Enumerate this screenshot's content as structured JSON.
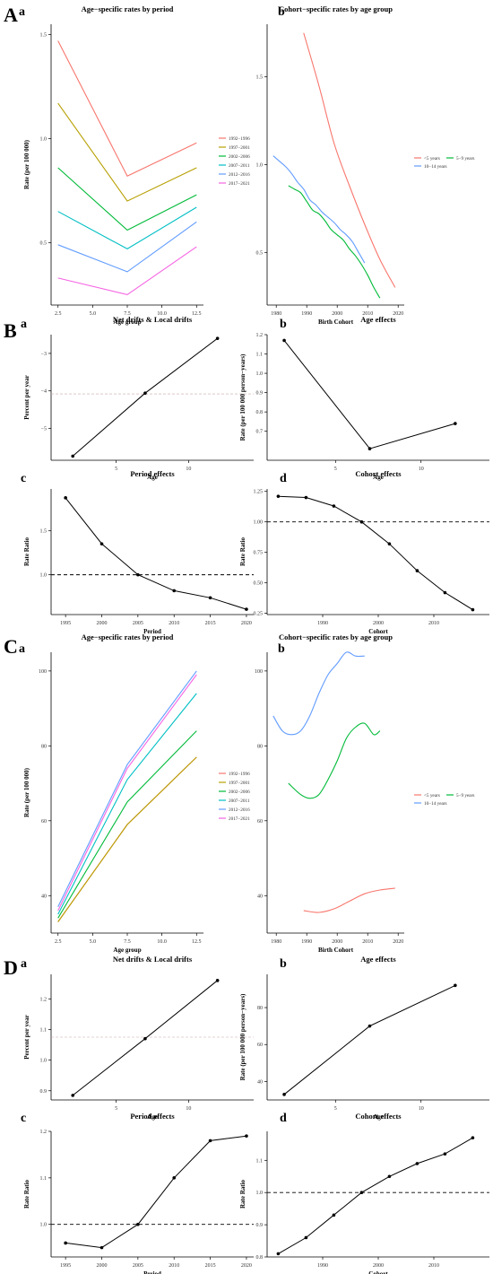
{
  "panels": [
    {
      "letter": "A",
      "sub": [
        "a",
        "b"
      ]
    },
    {
      "letter": "B",
      "sub": [
        "a",
        "b",
        "c",
        "d"
      ]
    },
    {
      "letter": "C",
      "sub": [
        "a",
        "b"
      ]
    },
    {
      "letter": "D",
      "sub": [
        "a",
        "b",
        "c",
        "d"
      ]
    }
  ],
  "chart_data": [
    {
      "type": "line",
      "panel": "A",
      "sub": "a",
      "title": "Age−specific rates by period",
      "xlabel": "Age group",
      "ylabel": "Rate (per 100 000)",
      "xlim": [
        2,
        13
      ],
      "ylim": [
        0.2,
        1.55
      ],
      "xticks": [
        2.5,
        5.0,
        7.5,
        10.0,
        12.5
      ],
      "xtick_labels": [
        "2.5",
        "5.0",
        "7.5",
        "10.0",
        "12.5"
      ],
      "yticks": [
        0.5,
        1.0,
        1.5
      ],
      "ytick_labels": [
        "0.5",
        "1.0",
        "1.5"
      ],
      "legend": "right",
      "x": [
        2.5,
        7.5,
        12.5
      ],
      "series": [
        {
          "name": "1992−1996",
          "color": "#f8766d",
          "values": [
            1.47,
            0.82,
            0.98
          ]
        },
        {
          "name": "1997−2001",
          "color": "#b79f00",
          "values": [
            1.17,
            0.7,
            0.86
          ]
        },
        {
          "name": "2002−2006",
          "color": "#00ba38",
          "values": [
            0.86,
            0.56,
            0.73
          ]
        },
        {
          "name": "2007−2011",
          "color": "#00bfc4",
          "values": [
            0.65,
            0.47,
            0.67
          ]
        },
        {
          "name": "2012−2016",
          "color": "#619cff",
          "values": [
            0.49,
            0.36,
            0.6
          ]
        },
        {
          "name": "2017−2021",
          "color": "#f564e3",
          "values": [
            0.33,
            0.25,
            0.48
          ]
        }
      ]
    },
    {
      "type": "line",
      "panel": "A",
      "sub": "b",
      "title": "Cohort−specific rates by age group",
      "xlabel": "Birth Cohort",
      "ylabel": "",
      "xlim": [
        1977,
        2022
      ],
      "ylim": [
        0.2,
        1.8
      ],
      "xticks": [
        1980,
        1990,
        2000,
        2010,
        2020
      ],
      "xtick_labels": [
        "1980",
        "1990",
        "2000",
        "2010",
        "2020"
      ],
      "yticks": [
        0.5,
        1.0,
        1.5
      ],
      "ytick_labels": [
        "0.5",
        "1.0",
        "1.5"
      ],
      "legend": "right",
      "series": [
        {
          "name": "<5 years",
          "color": "#f8766d",
          "x": [
            1989,
            1994,
            1999,
            2004,
            2009,
            2014,
            2019
          ],
          "values": [
            1.75,
            1.45,
            1.12,
            0.88,
            0.66,
            0.46,
            0.3
          ]
        },
        {
          "name": "5−9 years",
          "color": "#00ba38",
          "x": [
            1984,
            1986,
            1988,
            1990,
            1992,
            1994,
            1996,
            1998,
            2000,
            2002,
            2004,
            2006,
            2008,
            2010,
            2012,
            2014
          ],
          "values": [
            0.88,
            0.86,
            0.84,
            0.79,
            0.74,
            0.72,
            0.68,
            0.63,
            0.6,
            0.57,
            0.52,
            0.48,
            0.43,
            0.37,
            0.3,
            0.24
          ]
        },
        {
          "name": "10−14 years",
          "color": "#619cff",
          "x": [
            1979,
            1981,
            1983,
            1985,
            1987,
            1989,
            1991,
            1993,
            1995,
            1997,
            1999,
            2001,
            2003,
            2005,
            2007,
            2009
          ],
          "values": [
            1.05,
            1.02,
            0.99,
            0.95,
            0.9,
            0.86,
            0.8,
            0.77,
            0.73,
            0.7,
            0.67,
            0.63,
            0.6,
            0.56,
            0.5,
            0.44
          ]
        }
      ]
    },
    {
      "type": "line",
      "panel": "B",
      "sub": "a",
      "title": "Net drifts & Local drifts",
      "xlabel": "Age",
      "ylabel": "Percent per year",
      "xlim": [
        0.5,
        14.5
      ],
      "ylim": [
        -5.85,
        -2.5
      ],
      "xticks": [
        5,
        10
      ],
      "xtick_labels": [
        "5",
        "10"
      ],
      "yticks": [
        -5,
        -4,
        -3
      ],
      "ytick_labels": [
        "−5",
        "−4",
        "−3"
      ],
      "reference_line": -4.08,
      "x": [
        2,
        7,
        12
      ],
      "values": [
        -5.74,
        -4.06,
        -2.6
      ]
    },
    {
      "type": "line",
      "panel": "B",
      "sub": "b",
      "title": "Age effects",
      "xlabel": "Age",
      "ylabel": "Rate (per 100 000 person−years)",
      "xlim": [
        1,
        14
      ],
      "ylim": [
        0.55,
        1.2
      ],
      "xticks": [
        5,
        10
      ],
      "xtick_labels": [
        "5",
        "10"
      ],
      "yticks": [
        0.7,
        0.8,
        0.9,
        1.0,
        1.1,
        1.2
      ],
      "ytick_labels": [
        "0.7",
        "0.8",
        "0.9",
        "1.0",
        "1.1",
        "1.2"
      ],
      "x": [
        2,
        7,
        12
      ],
      "values": [
        1.17,
        0.61,
        0.74
      ]
    },
    {
      "type": "line",
      "panel": "B",
      "sub": "c",
      "title": "Period effects",
      "xlabel": "Period",
      "ylabel": "Rate Ratio",
      "xlim": [
        1993,
        2021
      ],
      "ylim": [
        0.55,
        1.97
      ],
      "xticks": [
        1995,
        2000,
        2005,
        2010,
        2015,
        2020
      ],
      "xtick_labels": [
        "1995",
        "2000",
        "2005",
        "2010",
        "2015",
        "2020"
      ],
      "yticks": [
        1.0,
        1.5
      ],
      "ytick_labels": [
        "1.0",
        "1.5"
      ],
      "reference_line": 1.0,
      "x": [
        1995,
        2000,
        2005,
        2010,
        2015,
        2020
      ],
      "values": [
        1.87,
        1.35,
        1.0,
        0.82,
        0.74,
        0.61
      ]
    },
    {
      "type": "line",
      "panel": "B",
      "sub": "d",
      "title": "Cohort effects",
      "xlabel": "Cohort",
      "ylabel": "Rate Ratio",
      "xlim": [
        1980,
        2020
      ],
      "ylim": [
        0.24,
        1.27
      ],
      "xticks": [
        1990,
        2000,
        2010
      ],
      "xtick_labels": [
        "1990",
        "2000",
        "2010"
      ],
      "yticks": [
        0.25,
        0.5,
        0.75,
        1.0,
        1.25
      ],
      "ytick_labels": [
        "0.25",
        "0.50",
        "0.75",
        "1.00",
        "1.25"
      ],
      "reference_line": 1.0,
      "x": [
        1982,
        1987,
        1992,
        1997,
        2002,
        2007,
        2012,
        2017
      ],
      "values": [
        1.21,
        1.2,
        1.13,
        1.0,
        0.82,
        0.6,
        0.42,
        0.28
      ]
    },
    {
      "type": "line",
      "panel": "C",
      "sub": "a",
      "title": "Age−specific rates by period",
      "xlabel": "Age group",
      "ylabel": "Rate (per 100 000)",
      "xlim": [
        2,
        13
      ],
      "ylim": [
        30,
        105
      ],
      "xticks": [
        2.5,
        5.0,
        7.5,
        10.0,
        12.5
      ],
      "xtick_labels": [
        "2.5",
        "5.0",
        "7.5",
        "10.0",
        "12.5"
      ],
      "yticks": [
        40,
        60,
        80,
        100
      ],
      "ytick_labels": [
        "40",
        "60",
        "80",
        "100"
      ],
      "legend": "right",
      "x": [
        2.5,
        7.5,
        12.5
      ],
      "series": [
        {
          "name": "1992−1996",
          "color": "#f8766d",
          "values": [
            33,
            59,
            77
          ]
        },
        {
          "name": "1997−2001",
          "color": "#b79f00",
          "values": [
            33,
            59,
            77
          ]
        },
        {
          "name": "2002−2006",
          "color": "#00ba38",
          "values": [
            34,
            65,
            84
          ]
        },
        {
          "name": "2007−2011",
          "color": "#00bfc4",
          "values": [
            35,
            71,
            94
          ]
        },
        {
          "name": "2012−2016",
          "color": "#619cff",
          "values": [
            37,
            75,
            100
          ]
        },
        {
          "name": "2017−2021",
          "color": "#f564e3",
          "values": [
            36,
            74,
            99
          ]
        }
      ]
    },
    {
      "type": "line",
      "panel": "C",
      "sub": "b",
      "title": "Cohort−specific rates by age group",
      "xlabel": "Birth Cohort",
      "ylabel": "",
      "xlim": [
        1977,
        2022
      ],
      "ylim": [
        30,
        105
      ],
      "xticks": [
        1980,
        1990,
        2000,
        2010,
        2020
      ],
      "xtick_labels": [
        "1980",
        "1990",
        "2000",
        "2010",
        "2020"
      ],
      "yticks": [
        40,
        60,
        80,
        100
      ],
      "ytick_labels": [
        "40",
        "60",
        "80",
        "100"
      ],
      "legend": "right",
      "series": [
        {
          "name": "<5 years",
          "color": "#f8766d",
          "x": [
            1989,
            1994,
            1999,
            2004,
            2009,
            2014,
            2019
          ],
          "values": [
            36,
            35.5,
            36.5,
            38.5,
            40.5,
            41.5,
            42
          ]
        },
        {
          "name": "5−9 years",
          "color": "#00ba38",
          "x": [
            1984,
            1988,
            1991,
            1994,
            1997,
            2000,
            2003,
            2006,
            2009,
            2012,
            2014
          ],
          "values": [
            70,
            67,
            66,
            67,
            71,
            76,
            82,
            85,
            86,
            83,
            84
          ]
        },
        {
          "name": "10−14 years",
          "color": "#619cff",
          "x": [
            1979,
            1982,
            1985,
            1988,
            1991,
            1994,
            1997,
            2000,
            2003,
            2006,
            2009
          ],
          "values": [
            88,
            84,
            83,
            84,
            88,
            94,
            99,
            102,
            105,
            104,
            104
          ]
        }
      ]
    },
    {
      "type": "line",
      "panel": "D",
      "sub": "a",
      "title": "Net drifts & Local drifts",
      "xlabel": "Age",
      "ylabel": "Percent per year",
      "xlim": [
        0.5,
        14.5
      ],
      "ylim": [
        0.87,
        1.28
      ],
      "xticks": [
        5,
        10
      ],
      "xtick_labels": [
        "5",
        "10"
      ],
      "yticks": [
        0.9,
        1.0,
        1.1,
        1.2
      ],
      "ytick_labels": [
        "0.9",
        "1.0",
        "1.1",
        "1.2"
      ],
      "reference_line": 1.075,
      "x": [
        2,
        7,
        12
      ],
      "values": [
        0.885,
        1.07,
        1.26
      ]
    },
    {
      "type": "line",
      "panel": "D",
      "sub": "b",
      "title": "Age effects",
      "xlabel": "Age",
      "ylabel": "Rate (per 100 000 person−years)",
      "xlim": [
        1,
        14
      ],
      "ylim": [
        30,
        98
      ],
      "xticks": [
        5,
        10
      ],
      "xtick_labels": [
        "5",
        "10"
      ],
      "yticks": [
        40,
        60,
        80
      ],
      "ytick_labels": [
        "40",
        "60",
        "80"
      ],
      "x": [
        2,
        7,
        12
      ],
      "values": [
        33,
        70,
        92
      ]
    },
    {
      "type": "line",
      "panel": "D",
      "sub": "c",
      "title": "Period effects",
      "xlabel": "Period",
      "ylabel": "Rate Ratio",
      "xlim": [
        1993,
        2021
      ],
      "ylim": [
        0.93,
        1.2
      ],
      "xticks": [
        1995,
        2000,
        2005,
        2010,
        2015,
        2020
      ],
      "xtick_labels": [
        "1995",
        "2000",
        "2005",
        "2010",
        "2015",
        "2020"
      ],
      "yticks": [
        1.0,
        1.1,
        1.2
      ],
      "ytick_labels": [
        "1.0",
        "1.1",
        "1.2"
      ],
      "reference_line": 1.0,
      "x": [
        1995,
        2000,
        2005,
        2010,
        2015,
        2020
      ],
      "values": [
        0.96,
        0.95,
        1.0,
        1.1,
        1.18,
        1.19
      ]
    },
    {
      "type": "line",
      "panel": "D",
      "sub": "d",
      "title": "Cohort effects",
      "xlabel": "Cohort",
      "ylabel": "Rate Ratio",
      "xlim": [
        1980,
        2020
      ],
      "ylim": [
        0.8,
        1.19
      ],
      "xticks": [
        1990,
        2000,
        2010
      ],
      "xtick_labels": [
        "1990",
        "2000",
        "2010"
      ],
      "yticks": [
        0.8,
        0.9,
        1.0,
        1.1
      ],
      "ytick_labels": [
        "0.8",
        "0.9",
        "1.0",
        "1.1"
      ],
      "reference_line": 1.0,
      "x": [
        1982,
        1987,
        1992,
        1997,
        2002,
        2007,
        2012,
        2017
      ],
      "values": [
        0.81,
        0.86,
        0.93,
        1.0,
        1.05,
        1.09,
        1.12,
        1.17
      ]
    }
  ]
}
